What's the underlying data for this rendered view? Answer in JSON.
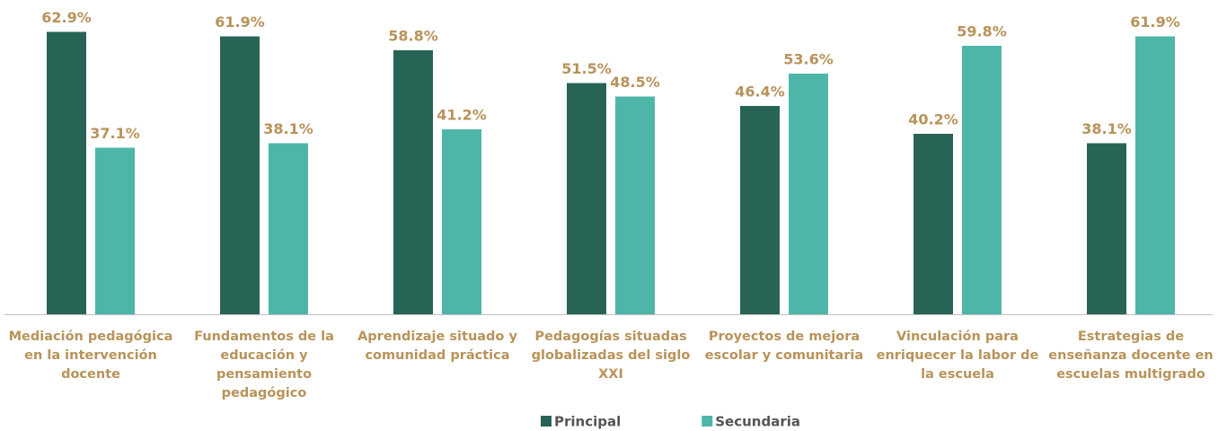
{
  "chart_data": {
    "type": "bar",
    "categories": [
      "Mediación pedagógica en la intervención docente",
      "Fundamentos de la educación y pensamiento pedagógico",
      "Aprendizaje situado y comunidad práctica",
      "Pedagogías situadas globalizadas del siglo XXI",
      "Proyectos de mejora escolar y comunitaria",
      "Vinculación para enriquecer la labor de la escuela",
      "Estrategias de enseñanza docente en escuelas multigrado"
    ],
    "series": [
      {
        "name": "Principal",
        "color": "#286455",
        "values": [
          62.9,
          61.9,
          58.8,
          51.5,
          46.4,
          40.2,
          38.1
        ],
        "value_labels": [
          "62.9%",
          "61.9%",
          "58.8%",
          "51.5%",
          "46.4%",
          "40.2%",
          "38.1%"
        ]
      },
      {
        "name": "Secundaria",
        "color": "#4db6a8",
        "values": [
          37.1,
          38.1,
          41.2,
          48.5,
          53.6,
          59.8,
          61.9
        ],
        "value_labels": [
          "37.1%",
          "38.1%",
          "41.2%",
          "48.5%",
          "53.6%",
          "59.8%",
          "61.9%"
        ]
      }
    ],
    "ylim": [
      0,
      70
    ]
  }
}
